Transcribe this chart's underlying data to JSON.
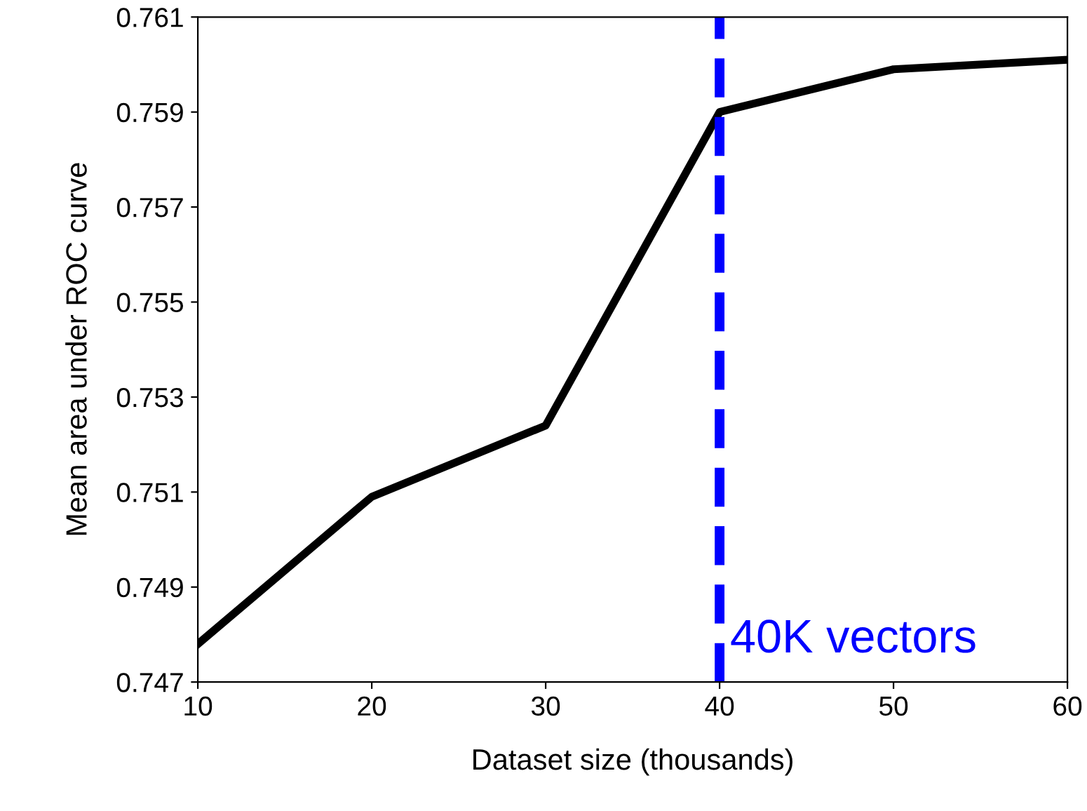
{
  "chart_data": {
    "type": "line",
    "xlabel": "Dataset size (thousands)",
    "ylabel": "Mean area under ROC curve",
    "x": [
      10,
      20,
      30,
      40,
      50,
      60
    ],
    "series": [
      {
        "color": "#000000",
        "values": [
          0.7478,
          0.7509,
          0.7524,
          0.759,
          0.7599,
          0.7601
        ]
      }
    ],
    "xlim": [
      10,
      60
    ],
    "xticks": [
      10,
      20,
      30,
      40,
      50,
      60
    ],
    "ylim": [
      0.747,
      0.761
    ],
    "yticks": [
      0.747,
      0.749,
      0.751,
      0.753,
      0.755,
      0.757,
      0.759,
      0.761
    ],
    "ref_lines": [
      {
        "axis": "x",
        "value": 40,
        "label": "40K vectors",
        "color": "#0000ff",
        "line_style": "dashed"
      }
    ],
    "grid": false,
    "legend": false,
    "marker": "none",
    "line_style": "solid"
  }
}
